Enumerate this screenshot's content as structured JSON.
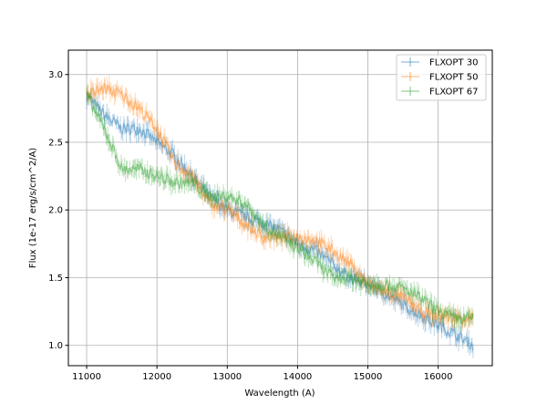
{
  "chart_data": {
    "type": "line",
    "title": "",
    "xlabel": "Wavelength (A)",
    "ylabel": "Flux (1e-17 erg/s/cm^2/A)",
    "xlim": [
      10740,
      16770
    ],
    "ylim": [
      0.85,
      3.18
    ],
    "xticks": [
      11000,
      12000,
      13000,
      14000,
      15000,
      16000
    ],
    "yticks": [
      1.0,
      1.5,
      2.0,
      2.5,
      3.0
    ],
    "xtick_labels": [
      "11000",
      "12000",
      "13000",
      "14000",
      "15000",
      "16000"
    ],
    "ytick_labels": [
      "1.0",
      "1.5",
      "2.0",
      "2.5",
      "3.0"
    ],
    "grid": true,
    "legend_position": "top-right",
    "x": [
      11000,
      11250,
      11500,
      11750,
      12000,
      12250,
      12500,
      12750,
      13000,
      13250,
      13500,
      13750,
      14000,
      14250,
      14500,
      14750,
      15000,
      15250,
      15500,
      15750,
      16000,
      16250,
      16500
    ],
    "series": [
      {
        "name": "FLXOPT 30",
        "color": "#1f77b4",
        "values": [
          2.85,
          2.7,
          2.6,
          2.6,
          2.5,
          2.4,
          2.25,
          2.1,
          2.0,
          1.95,
          1.9,
          1.85,
          1.75,
          1.7,
          1.6,
          1.5,
          1.45,
          1.38,
          1.3,
          1.22,
          1.15,
          1.08,
          1.0
        ]
      },
      {
        "name": "FLXOPT 50",
        "color": "#ff7f0e",
        "values": [
          2.85,
          2.9,
          2.85,
          2.75,
          2.6,
          2.35,
          2.25,
          2.05,
          2.0,
          1.9,
          1.8,
          1.8,
          1.8,
          1.78,
          1.7,
          1.6,
          1.45,
          1.4,
          1.35,
          1.25,
          1.22,
          1.2,
          1.2
        ]
      },
      {
        "name": "FLXOPT 67",
        "color": "#2ca02c",
        "values": [
          2.85,
          2.6,
          2.3,
          2.3,
          2.25,
          2.2,
          2.2,
          2.1,
          2.1,
          2.05,
          1.9,
          1.8,
          1.72,
          1.62,
          1.5,
          1.5,
          1.45,
          1.45,
          1.42,
          1.35,
          1.25,
          1.2,
          1.2
        ]
      }
    ]
  }
}
